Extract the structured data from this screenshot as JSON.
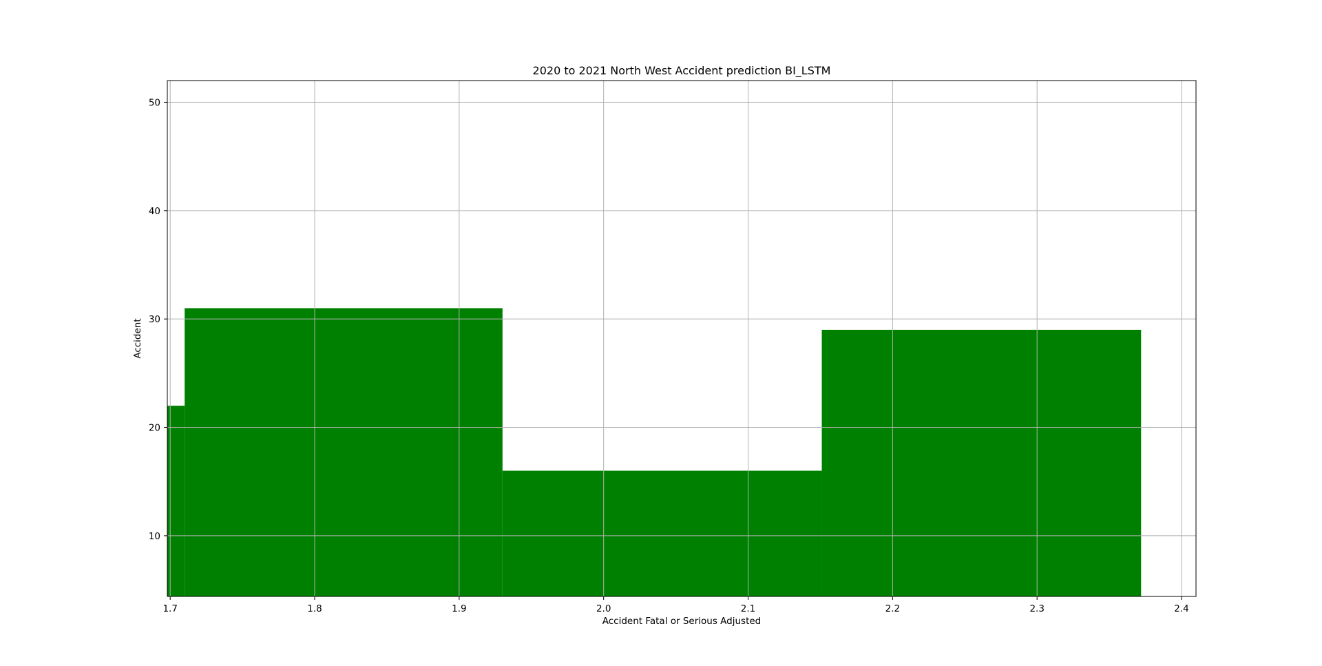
{
  "chart_data": {
    "type": "bar",
    "title": "2020 to 2021 North West Accident prediction BI_LSTM",
    "xlabel": "Accident Fatal or Serious Adjusted",
    "ylabel": "Accident",
    "xlim": [
      1.698,
      2.41
    ],
    "ylim": [
      4.4,
      52
    ],
    "xticks": [
      1.7,
      1.8,
      1.9,
      2.0,
      2.1,
      2.2,
      2.3,
      2.4
    ],
    "xtick_labels": [
      "1.7",
      "1.8",
      "1.9",
      "2.0",
      "2.1",
      "2.2",
      "2.3",
      "2.4"
    ],
    "yticks": [
      10,
      20,
      30,
      40,
      50
    ],
    "ytick_labels": [
      "10",
      "20",
      "30",
      "40",
      "50"
    ],
    "grid": true,
    "bars": [
      {
        "x0": 1.698,
        "x1": 1.71,
        "value": 22
      },
      {
        "x0": 1.71,
        "x1": 1.93,
        "value": 31
      },
      {
        "x0": 1.93,
        "x1": 2.151,
        "value": 16
      },
      {
        "x0": 2.151,
        "x1": 2.372,
        "value": 29
      }
    ],
    "bar_color": "#008000"
  }
}
